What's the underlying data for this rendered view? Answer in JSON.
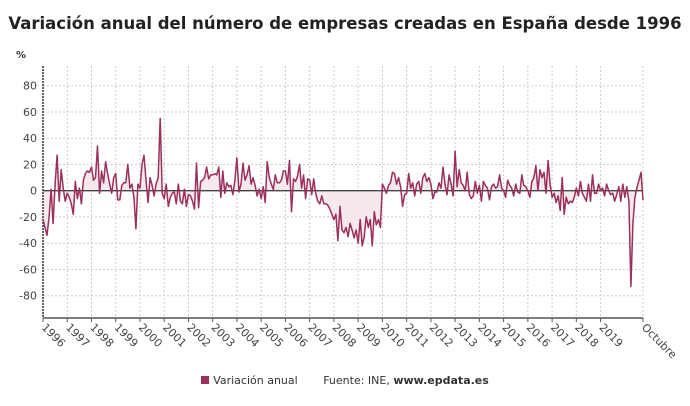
{
  "chart_data": {
    "type": "line",
    "title": "Variación anual del número de empresas creadas en España desde 1996",
    "ylabel": "%",
    "ylim": [
      -97,
      95
    ],
    "yticks": [
      80,
      60,
      40,
      20,
      0,
      -20,
      -40,
      -60,
      -80
    ],
    "xtick_labels": [
      "1996",
      "1997",
      "1998",
      "1999",
      "2000",
      "2001",
      "2002",
      "2003",
      "2004",
      "2005",
      "2006",
      "2007",
      "2008",
      "2009",
      "2010",
      "2011",
      "2012",
      "2013",
      "2014",
      "2015",
      "2016",
      "2017",
      "2018",
      "2019",
      "Octubre"
    ],
    "x_start": "1996-01",
    "x_end": "2020-10",
    "frequency": "monthly",
    "grid": true,
    "legend_position": "bottom",
    "series": [
      {
        "name": "Variación anual",
        "color": "#9b2f5e",
        "values": [
          -22,
          -28,
          -34,
          -20,
          1,
          -25,
          5,
          27,
          -8,
          16,
          2,
          -8,
          -2,
          -5,
          -10,
          -18,
          7,
          -6,
          2,
          -10,
          8,
          13,
          15,
          14,
          18,
          8,
          10,
          34,
          -2,
          15,
          6,
          22,
          13,
          5,
          -2,
          10,
          13,
          -7,
          -7,
          4,
          6,
          6,
          20,
          2,
          5,
          -5,
          -29,
          5,
          2,
          20,
          27,
          8,
          -9,
          10,
          4,
          -4,
          5,
          10,
          55,
          -2,
          -6,
          5,
          -12,
          -5,
          -2,
          -1,
          -10,
          5,
          -8,
          -10,
          1,
          -12,
          -3,
          -4,
          -8,
          -14,
          21,
          -13,
          7,
          8,
          10,
          18,
          9,
          12,
          12,
          13,
          12,
          18,
          -5,
          15,
          -2,
          6,
          3,
          4,
          -3,
          8,
          25,
          -1,
          5,
          21,
          8,
          12,
          19,
          5,
          10,
          4,
          -4,
          1,
          -6,
          3,
          -9,
          22,
          10,
          5,
          1,
          12,
          6,
          6,
          8,
          15,
          15,
          5,
          23,
          -16,
          9,
          7,
          11,
          20,
          2,
          12,
          -6,
          9,
          8,
          -3,
          9,
          -2,
          -8,
          -10,
          -4,
          -10,
          -10,
          -11,
          -14,
          -18,
          -22,
          -18,
          -38,
          -12,
          -30,
          -32,
          -28,
          -35,
          -25,
          -30,
          -36,
          -30,
          -40,
          -22,
          -42,
          -35,
          -20,
          -28,
          -22,
          -42,
          -16,
          -26,
          -22,
          -28,
          5,
          2,
          -2,
          4,
          6,
          14,
          13,
          5,
          10,
          3,
          -12,
          -3,
          -2,
          13,
          2,
          6,
          -4,
          5,
          7,
          -2,
          10,
          13,
          7,
          10,
          5,
          -6,
          -1,
          -1,
          6,
          2,
          18,
          5,
          -3,
          12,
          5,
          -4,
          30,
          3,
          16,
          6,
          4,
          0,
          14,
          -3,
          -6,
          -4,
          7,
          -2,
          4,
          -8,
          7,
          4,
          2,
          -7,
          3,
          5,
          2,
          3,
          12,
          2,
          0,
          -5,
          8,
          4,
          2,
          -4,
          5,
          -1,
          -2,
          12,
          4,
          3,
          0,
          -5,
          7,
          10,
          19,
          0,
          16,
          10,
          14,
          -2,
          23,
          5,
          -5,
          -2,
          -9,
          -4,
          -15,
          10,
          -18,
          -5,
          -10,
          -8,
          -9,
          -5,
          2,
          -4,
          7,
          -2,
          -5,
          -8,
          5,
          -8,
          12,
          -2,
          -2,
          5,
          0,
          2,
          -4,
          5,
          0,
          -3,
          -2,
          -8,
          -3,
          3,
          -8,
          5,
          -5,
          3,
          -8,
          -73,
          -25,
          -5,
          2,
          8,
          14,
          -7
        ]
      }
    ],
    "source_label": "Fuente: INE, ",
    "source_site": "www.epdata.es"
  }
}
